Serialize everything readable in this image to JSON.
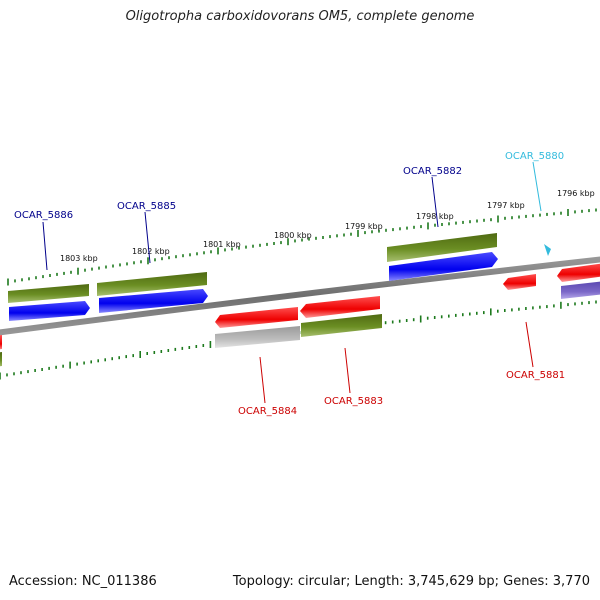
{
  "title": "Oligotropha carboxidovorans OM5, complete genome",
  "accession": "Accession: NC_011386",
  "summary": "Topology: circular; Length: 3,745,629 bp; Genes: 3,770",
  "colors": {
    "backbone": "#7a7a7a",
    "tick": "#1d7a1d",
    "gene_blue": "#0000ee",
    "gene_olive": "#6b8e23",
    "gene_red": "#ee1111",
    "gene_gray": "#b8b8b8",
    "gene_purple": "#7b68c8",
    "label_blue": "#00008b",
    "label_cyan": "#33bbdd",
    "label_red": "#cc0000"
  },
  "kbp_labels": [
    "1803 kbp",
    "1802 kbp",
    "1801 kbp",
    "1800 kbp",
    "1799 kbp",
    "1798 kbp",
    "1797 kbp",
    "1796 kbp"
  ],
  "gene_labels": {
    "ocar_5886": "OCAR_5886",
    "ocar_5885": "OCAR_5885",
    "ocar_5882": "OCAR_5882",
    "ocar_5880": "OCAR_5880",
    "ocar_5884": "OCAR_5884",
    "ocar_5883": "OCAR_5883",
    "ocar_5881": "OCAR_5881"
  }
}
